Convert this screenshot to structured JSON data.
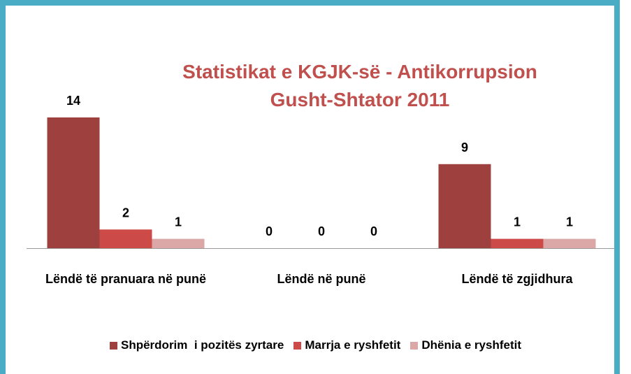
{
  "chart_data": {
    "type": "bar",
    "title": [
      "Statistikat e KGJK-së - Antikorrupsion",
      "Gusht-Shtator 2011"
    ],
    "categories": [
      "Lëndë të pranuara në punë",
      "Lëndë në punë",
      "Lëndë të zgjidhura"
    ],
    "series": [
      {
        "name": "Shpërdorim  i pozitës zyrtare",
        "color": "#9e403e",
        "values": [
          14,
          0,
          9
        ]
      },
      {
        "name": "Marrja e ryshfetit",
        "color": "#cc4b49",
        "values": [
          2,
          0,
          1
        ]
      },
      {
        "name": "Dhënia e ryshfetit",
        "color": "#dba8a7",
        "values": [
          1,
          0,
          1
        ]
      }
    ],
    "legend": "bottom"
  }
}
